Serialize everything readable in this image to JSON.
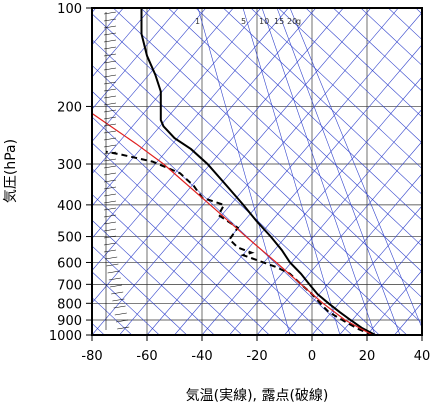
{
  "chart_data": {
    "type": "line",
    "xlabel": "気温(実線), 露点(破線)",
    "ylabel": "気圧(hPa)",
    "xlim": [
      -80,
      40
    ],
    "ylim": [
      1000,
      100
    ],
    "y_scale": "log",
    "x_ticks": [
      -80,
      -60,
      -40,
      -20,
      0,
      20,
      40
    ],
    "y_ticks": [
      100,
      200,
      300,
      400,
      500,
      600,
      700,
      800,
      900,
      1000
    ],
    "grid": true,
    "mixing_ratio_labels": [
      "1",
      "5",
      "10",
      "15",
      "20",
      "g"
    ],
    "series": [
      {
        "style": "solid",
        "color": "#000000",
        "points": [
          [
            23,
            1000
          ],
          [
            18,
            950
          ],
          [
            14,
            900
          ],
          [
            10,
            850
          ],
          [
            6,
            800
          ],
          [
            2,
            750
          ],
          [
            -1,
            700
          ],
          [
            -4,
            650
          ],
          [
            -8,
            600
          ],
          [
            -11,
            550
          ],
          [
            -15,
            500
          ],
          [
            -20,
            450
          ],
          [
            -25,
            400
          ],
          [
            -31,
            350
          ],
          [
            -38,
            300
          ],
          [
            -44,
            270
          ],
          [
            -50,
            250
          ],
          [
            -54,
            230
          ],
          [
            -55,
            220
          ],
          [
            -55,
            200
          ],
          [
            -55,
            180
          ],
          [
            -57,
            160
          ],
          [
            -60,
            140
          ],
          [
            -62,
            120
          ],
          [
            -62,
            110
          ],
          [
            -62,
            100
          ]
        ]
      },
      {
        "style": "dashed",
        "color": "#000000",
        "points": [
          [
            22,
            1000
          ],
          [
            17,
            960
          ],
          [
            13,
            920
          ],
          [
            9,
            880
          ],
          [
            6,
            850
          ],
          [
            3,
            800
          ],
          [
            0,
            750
          ],
          [
            -4,
            700
          ],
          [
            -8,
            650
          ],
          [
            -13,
            620
          ],
          [
            -20,
            590
          ],
          [
            -25,
            570
          ],
          [
            -22,
            560
          ],
          [
            -27,
            540
          ],
          [
            -30,
            510
          ],
          [
            -27,
            470
          ],
          [
            -34,
            430
          ],
          [
            -32,
            400
          ],
          [
            -40,
            380
          ],
          [
            -43,
            350
          ],
          [
            -48,
            320
          ],
          [
            -58,
            295
          ],
          [
            -70,
            280
          ],
          [
            -75,
            275
          ]
        ]
      },
      {
        "style": "parcel",
        "color": "#e02020",
        "points": [
          [
            22,
            1000
          ],
          [
            12,
            900
          ],
          [
            4,
            800
          ],
          [
            -4,
            700
          ],
          [
            -13,
            600
          ],
          [
            -24,
            500
          ],
          [
            -37,
            400
          ],
          [
            -54,
            300
          ],
          [
            -64,
            260
          ],
          [
            -80,
            210
          ]
        ]
      }
    ]
  }
}
